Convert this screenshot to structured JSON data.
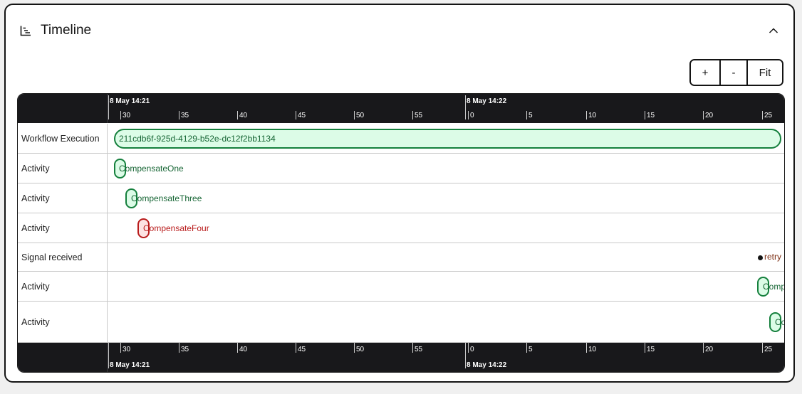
{
  "header": {
    "title": "Timeline",
    "title_icon": "timeline-chart-icon",
    "collapse_icon": "chevron-up-icon"
  },
  "zoom": {
    "zoom_in": "+",
    "zoom_out": "-",
    "fit": "Fit"
  },
  "axis": {
    "dates": [
      "8 May 14:21",
      "8 May 14:22"
    ],
    "ticks": [
      "30",
      "35",
      "40",
      "45",
      "50",
      "55",
      "0",
      "5",
      "10",
      "15",
      "20",
      "25"
    ]
  },
  "rows": [
    {
      "label": "Workflow Execution",
      "text": "211cdb6f-925d-4129-b52e-dc12f2bb1134",
      "status": "completed",
      "kind": "workflow"
    },
    {
      "label": "Activity",
      "text": "CompensateOne",
      "status": "completed",
      "kind": "activity"
    },
    {
      "label": "Activity",
      "text": "CompensateThree",
      "status": "completed",
      "kind": "activity"
    },
    {
      "label": "Activity",
      "text": "CompensateFour",
      "status": "failed",
      "kind": "activity"
    },
    {
      "label": "Signal received",
      "text": "retry",
      "status": "signal",
      "kind": "signal"
    },
    {
      "label": "Activity",
      "text": "Comp",
      "status": "completed",
      "kind": "activity"
    },
    {
      "label": "Activity",
      "text": "Co",
      "status": "completed",
      "kind": "activity"
    }
  ],
  "colors": {
    "completed_border": "#15803d",
    "completed_fill": "#dcfce7",
    "failed_border": "#b91c1c",
    "failed_fill": "#fde2e2",
    "axis_bg": "#18181b"
  }
}
